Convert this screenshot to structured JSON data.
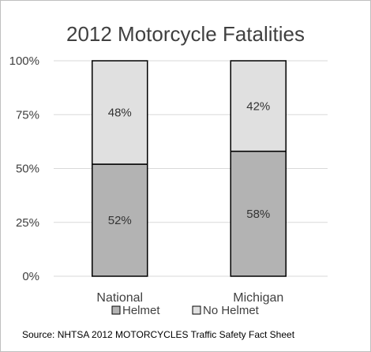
{
  "chart_data": {
    "type": "bar",
    "stacked": true,
    "percent": true,
    "title": "2012 Motorcycle Fatalities",
    "categories": [
      "National",
      "Michigan"
    ],
    "series": [
      {
        "name": "Helmet",
        "values": [
          52,
          58
        ],
        "labels": [
          "52%",
          "58%"
        ],
        "color": "#b3b3b3"
      },
      {
        "name": "No Helmet",
        "values": [
          48,
          42
        ],
        "labels": [
          "48%",
          "42%"
        ],
        "color": "#e0e0e0"
      }
    ],
    "ylim": [
      0,
      100
    ],
    "yticks": [
      {
        "value": 0,
        "label": "0%"
      },
      {
        "value": 25,
        "label": "25%"
      },
      {
        "value": 50,
        "label": "50%"
      },
      {
        "value": 75,
        "label": "75%"
      },
      {
        "value": 100,
        "label": "100%"
      }
    ],
    "grid": true,
    "legend_position": "bottom",
    "source": "Source: NHTSA 2012  MOTORCYCLES Traffic Safety Fact Sheet"
  }
}
